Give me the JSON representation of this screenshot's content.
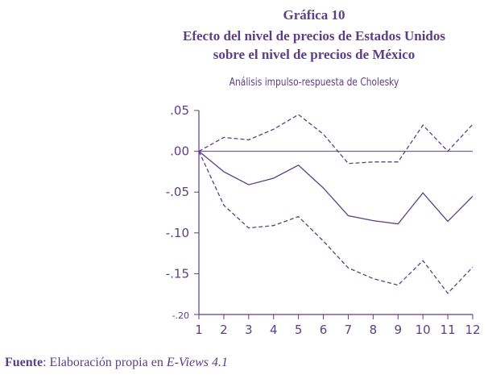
{
  "header": {
    "line1": "Gráfica 10",
    "line2": "Efecto del nivel de precios de Estados Unidos",
    "line3": "sobre el nivel de precios de México"
  },
  "chart_data": {
    "type": "line",
    "title": "Gráfica 10",
    "subtitle": "Análisis impulso-respuesta de Cholesky",
    "xlabel": "",
    "ylabel": "",
    "x": [
      1,
      2,
      3,
      4,
      5,
      6,
      7,
      8,
      9,
      10,
      11,
      12
    ],
    "ylim": [
      -0.2,
      0.05
    ],
    "yticks": [
      ".05",
      ".00",
      "-.05",
      "-.10",
      "-.15",
      "-.20"
    ],
    "ytick_values": [
      0.05,
      0.0,
      -0.05,
      -0.1,
      -0.15,
      -0.2
    ],
    "series": [
      {
        "name": "upper band",
        "style": "dashed",
        "values": [
          0.0,
          0.017,
          0.014,
          0.027,
          0.045,
          0.021,
          -0.015,
          -0.013,
          -0.013,
          0.032,
          0.0,
          0.033
        ]
      },
      {
        "name": "response",
        "style": "solid",
        "values": [
          0.0,
          -0.025,
          -0.041,
          -0.033,
          -0.017,
          -0.045,
          -0.079,
          -0.085,
          -0.089,
          -0.051,
          -0.086,
          -0.055
        ]
      },
      {
        "name": "lower band",
        "style": "dashed",
        "values": [
          0.0,
          -0.066,
          -0.094,
          -0.091,
          -0.08,
          -0.11,
          -0.143,
          -0.156,
          -0.164,
          -0.134,
          -0.174,
          -0.142
        ]
      }
    ],
    "zero_line": true,
    "color": "#5b3f86"
  },
  "footer": {
    "source_label": "Fuente",
    "source_sep": ": Elaboración propia en ",
    "source_tool": "E-Views 4.1"
  }
}
